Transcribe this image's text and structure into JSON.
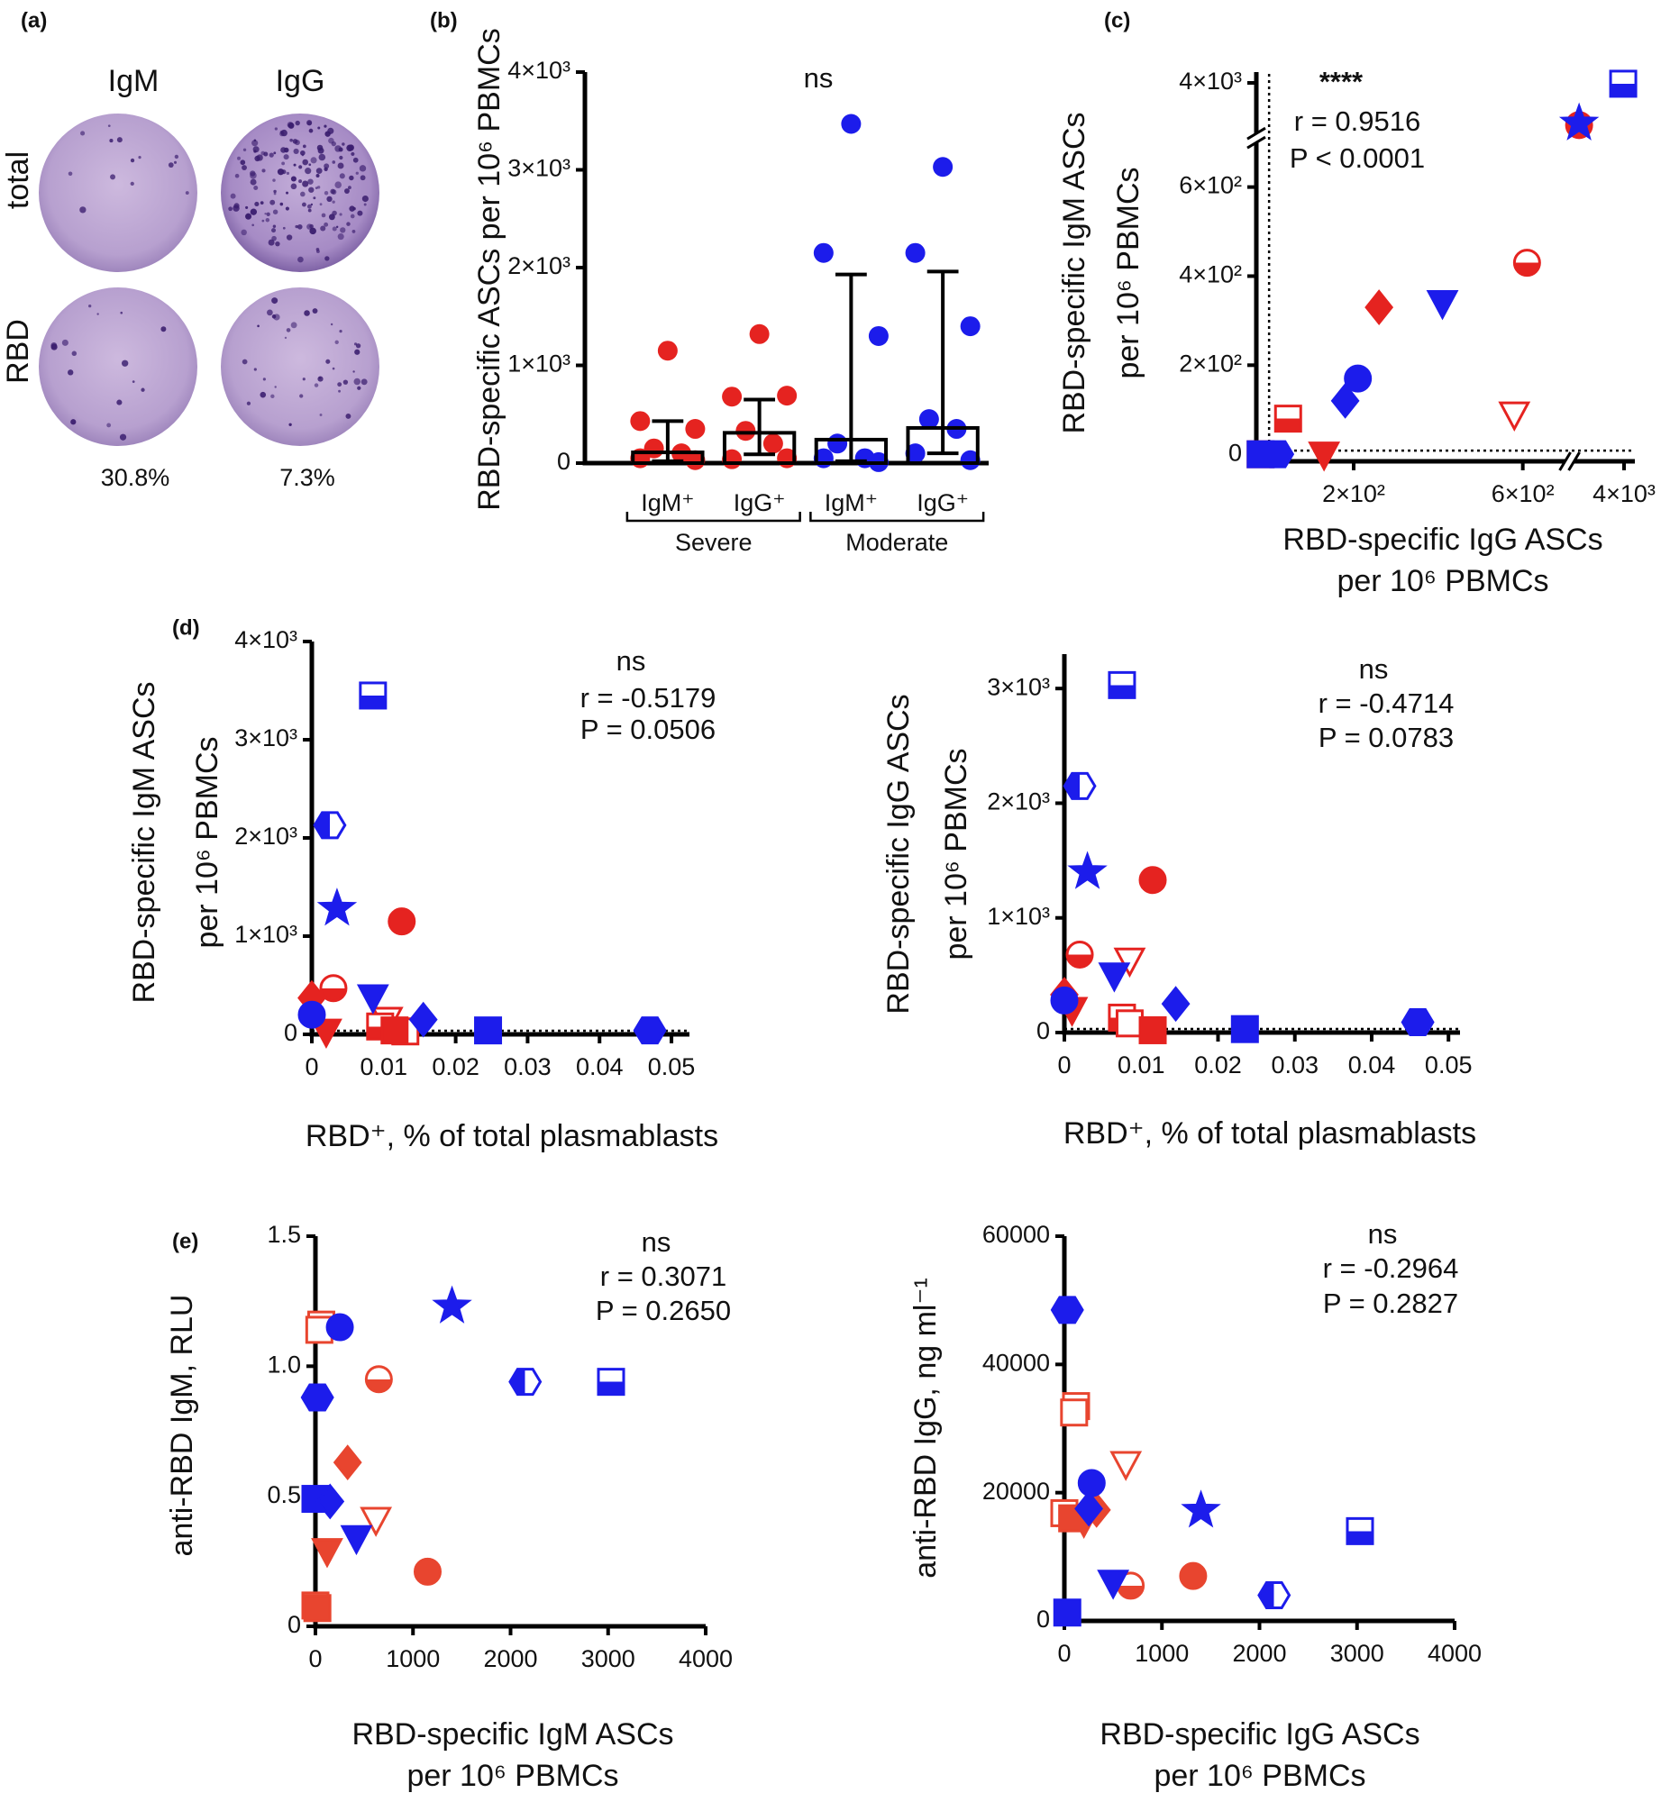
{
  "panel_a": {
    "label": "(a)",
    "columns": [
      "IgM",
      "IgG"
    ],
    "rows": [
      "total",
      "RBD"
    ],
    "percentages": [
      "30.8%",
      "7.3%"
    ]
  },
  "chart_data": [
    {
      "type": "dotbar",
      "panel": "(b)",
      "ylabel": "RBD-specific ASCs per 10⁶ PBMCs",
      "annotations": [
        "ns"
      ],
      "categories": [
        "IgM⁺",
        "IgG⁺",
        "IgM⁺",
        "IgG⁺"
      ],
      "groups": [
        "Severe",
        "Moderate"
      ],
      "colors": [
        "#e52320",
        "#e52320",
        "#1c1ceb",
        "#1c1ceb"
      ],
      "values": [
        [
          1150,
          430,
          350,
          150,
          100,
          50,
          30
        ],
        [
          1320,
          680,
          690,
          330,
          200,
          40,
          50
        ],
        [
          3470,
          2150,
          1300,
          200,
          50,
          50,
          10
        ],
        [
          3030,
          2150,
          1400,
          450,
          350,
          100,
          30
        ]
      ],
      "medians": [
        110,
        310,
        240,
        360
      ],
      "error_low": [
        20,
        90,
        20,
        100
      ],
      "error_high": [
        430,
        650,
        1930,
        1960
      ],
      "ylim": [
        0,
        4000
      ],
      "yticks": [
        0,
        {
          "value": 1000,
          "label": "1×10³"
        },
        {
          "value": 2000,
          "label": "2×10³"
        },
        {
          "value": 3000,
          "label": "3×10³"
        },
        {
          "value": 4000,
          "label": "4×10³"
        }
      ]
    },
    {
      "type": "scatter",
      "panel": "(c)",
      "ylabel": [
        "RBD-specific IgM ASCs",
        "per 10⁶ PBMCs"
      ],
      "xlabel": [
        "RBD-specific IgG ASCs",
        "per 10⁶ PBMCs"
      ],
      "annotations": [
        "****",
        "r = 0.9516",
        "P < 0.0001"
      ],
      "xlim": [
        -60,
        4000
      ],
      "xbreak": [
        700,
        1000
      ],
      "ylim": [
        -30,
        4000
      ],
      "ybreak": [
        700,
        1000
      ],
      "zero_lines": true,
      "xticks": [
        {
          "value": 200,
          "label": "2×10²"
        },
        {
          "value": 600,
          "label": "6×10²"
        },
        {
          "value": 4000,
          "label": "4×10³"
        }
      ],
      "yticks": [
        0,
        {
          "value": 200,
          "label": "2×10²"
        },
        {
          "value": 400,
          "label": "4×10²"
        },
        {
          "value": 600,
          "label": "6×10²"
        },
        {
          "value": 4000,
          "label": "4×10³"
        }
      ],
      "series": [
        {
          "color": "#e52320",
          "x": [
            1300,
            610,
            580,
            260,
            45,
            130,
            -20
          ],
          "values": [
            1500,
            430,
            90,
            330,
            80,
            0,
            0
          ],
          "markers": [
            "circle",
            "circle-half",
            "triangle-open",
            "diamond",
            "square-half",
            "triangle",
            "square"
          ]
        },
        {
          "color": "#1c1ceb",
          "x": [
            3950,
            1300,
            410,
            210,
            180,
            20,
            -20
          ],
          "values": [
            3950,
            1600,
            340,
            170,
            120,
            0,
            0
          ],
          "markers": [
            "square-half",
            "star",
            "triangle",
            "circle",
            "diamond",
            "hexagon",
            "square"
          ]
        }
      ]
    },
    {
      "type": "scatter",
      "panel": "(d)",
      "ylabel": [
        "RBD-specific IgM ASCs",
        "per 10⁶ PBMCs"
      ],
      "xlabel": "RBD⁺, % of total plasmablasts",
      "annotations": [
        "ns",
        "r = -0.5179",
        "P = 0.0506"
      ],
      "zero_lines": true,
      "xlim": [
        0,
        0.0525
      ],
      "ylim": [
        0,
        4000
      ],
      "xticks": [
        0,
        0.01,
        0.02,
        0.03,
        0.04,
        0.05
      ],
      "yticks": [
        0,
        {
          "value": 1000,
          "label": "1×10³"
        },
        {
          "value": 2000,
          "label": "2×10³"
        },
        {
          "value": 3000,
          "label": "3×10³"
        },
        {
          "value": 4000,
          "label": "4×10³"
        }
      ],
      "series": [
        {
          "color": "#e52320",
          "x": [
            0.0125,
            0.003,
            0.0,
            0.002,
            0.0105,
            0.0095,
            0.013,
            0.0115
          ],
          "values": [
            1150,
            470,
            370,
            30,
            150,
            80,
            30,
            40
          ],
          "markers": [
            "circle",
            "circle-half",
            "diamond",
            "triangle",
            "triangle-open",
            "square-half",
            "square-open",
            "square"
          ]
        },
        {
          "color": "#1c1ceb",
          "x": [
            0.0085,
            0.0025,
            0.0035,
            0.0085,
            0.0,
            0.0155,
            0.0245,
            0.047
          ],
          "values": [
            3450,
            2130,
            1280,
            380,
            200,
            150,
            40,
            40
          ],
          "markers": [
            "square-half",
            "hexagon-half",
            "star",
            "triangle",
            "circle",
            "diamond",
            "square",
            "hexagon"
          ]
        }
      ]
    },
    {
      "type": "scatter",
      "ylabel": [
        "RBD-specific IgG ASCs",
        "per 10⁶ PBMCs"
      ],
      "xlabel": "RBD⁺, % of total plasmablasts",
      "annotations": [
        "ns",
        "r = -0.4714",
        "P = 0.0783"
      ],
      "zero_lines": true,
      "xlim": [
        0,
        0.0515
      ],
      "ylim": [
        0,
        3300
      ],
      "xticks": [
        0,
        0.01,
        0.02,
        0.03,
        0.04,
        0.05
      ],
      "yticks": [
        0,
        {
          "value": 1000,
          "label": "1×10³"
        },
        {
          "value": 2000,
          "label": "2×10³"
        },
        {
          "value": 3000,
          "label": "3×10³"
        }
      ],
      "series": [
        {
          "color": "#e52320",
          "x": [
            0.0115,
            0.002,
            0.0085,
            0.0,
            0.001,
            0.0075,
            0.0085,
            0.0115
          ],
          "values": [
            1330,
            680,
            630,
            330,
            200,
            130,
            80,
            20
          ],
          "markers": [
            "circle",
            "circle-half",
            "triangle-open",
            "diamond",
            "triangle",
            "square-half",
            "square-open",
            "square"
          ]
        },
        {
          "color": "#1c1ceb",
          "x": [
            0.0075,
            0.002,
            0.003,
            0.0065,
            0.0,
            0.0145,
            0.0235,
            0.046
          ],
          "values": [
            3030,
            2150,
            1400,
            500,
            280,
            250,
            30,
            90
          ],
          "markers": [
            "square-half",
            "hexagon-half",
            "star",
            "triangle",
            "circle",
            "diamond",
            "square",
            "hexagon"
          ]
        }
      ]
    },
    {
      "type": "scatter",
      "panel": "(e)",
      "ylabel": "anti-RBD IgM, RLU",
      "xlabel": [
        "RBD-specific IgM ASCs",
        "per 10⁶ PBMCs"
      ],
      "annotations": [
        "ns",
        "r = 0.3071",
        "P = 0.2650"
      ],
      "xlim": [
        0,
        4000
      ],
      "ylim": [
        0,
        1.5
      ],
      "xticks": [
        0,
        1000,
        2000,
        3000,
        4000
      ],
      "yticks": [
        0,
        0.5,
        {
          "value": 1,
          "label": "1.0"
        },
        1.5
      ],
      "series": [
        {
          "color": "#e8452f",
          "x": [
            60,
            40,
            650,
            330,
            620,
            120,
            1150,
            0,
            20
          ],
          "values": [
            1.16,
            1.14,
            0.95,
            0.63,
            0.41,
            0.29,
            0.21,
            0.08,
            0.07
          ],
          "markers": [
            "square-half",
            "square-open",
            "circle-half",
            "diamond",
            "triangle-open",
            "triangle",
            "circle",
            "square-open",
            "square"
          ]
        },
        {
          "color": "#1c1ceb",
          "x": [
            250,
            1400,
            2150,
            3030,
            20,
            0,
            150,
            420
          ],
          "values": [
            1.15,
            1.23,
            0.94,
            0.94,
            0.88,
            0.49,
            0.48,
            0.34
          ],
          "markers": [
            "circle",
            "star",
            "hexagon-half",
            "square-half",
            "hexagon",
            "square",
            "diamond",
            "triangle"
          ]
        }
      ]
    },
    {
      "type": "scatter",
      "ylabel": "anti-RBD IgG, ng ml⁻¹",
      "xlabel": [
        "RBD-specific IgG ASCs",
        "per 10⁶ PBMCs"
      ],
      "annotations": [
        "ns",
        "r = -0.2964",
        "P = 0.2827"
      ],
      "xlim": [
        0,
        4000
      ],
      "ylim": [
        0,
        60000
      ],
      "xticks": [
        0,
        1000,
        2000,
        3000,
        4000
      ],
      "yticks": [
        0,
        20000,
        40000,
        60000
      ],
      "series": [
        {
          "color": "#e8452f",
          "x": [
            120,
            100,
            630,
            330,
            0,
            80,
            200,
            680,
            1320
          ],
          "values": [
            33500,
            32500,
            24500,
            17300,
            16800,
            16000,
            15500,
            5500,
            7000
          ],
          "markers": [
            "square-half",
            "square-open",
            "triangle-open",
            "diamond",
            "square-open",
            "square",
            "triangle",
            "circle-half",
            "circle"
          ]
        },
        {
          "color": "#1c1ceb",
          "x": [
            30,
            280,
            1400,
            250,
            3030,
            500,
            2150,
            30
          ],
          "values": [
            48500,
            21500,
            17200,
            17500,
            14000,
            6000,
            4000,
            1300
          ],
          "markers": [
            "hexagon",
            "circle",
            "star",
            "diamond",
            "square-half",
            "triangle",
            "hexagon-half",
            "square"
          ]
        }
      ]
    }
  ]
}
